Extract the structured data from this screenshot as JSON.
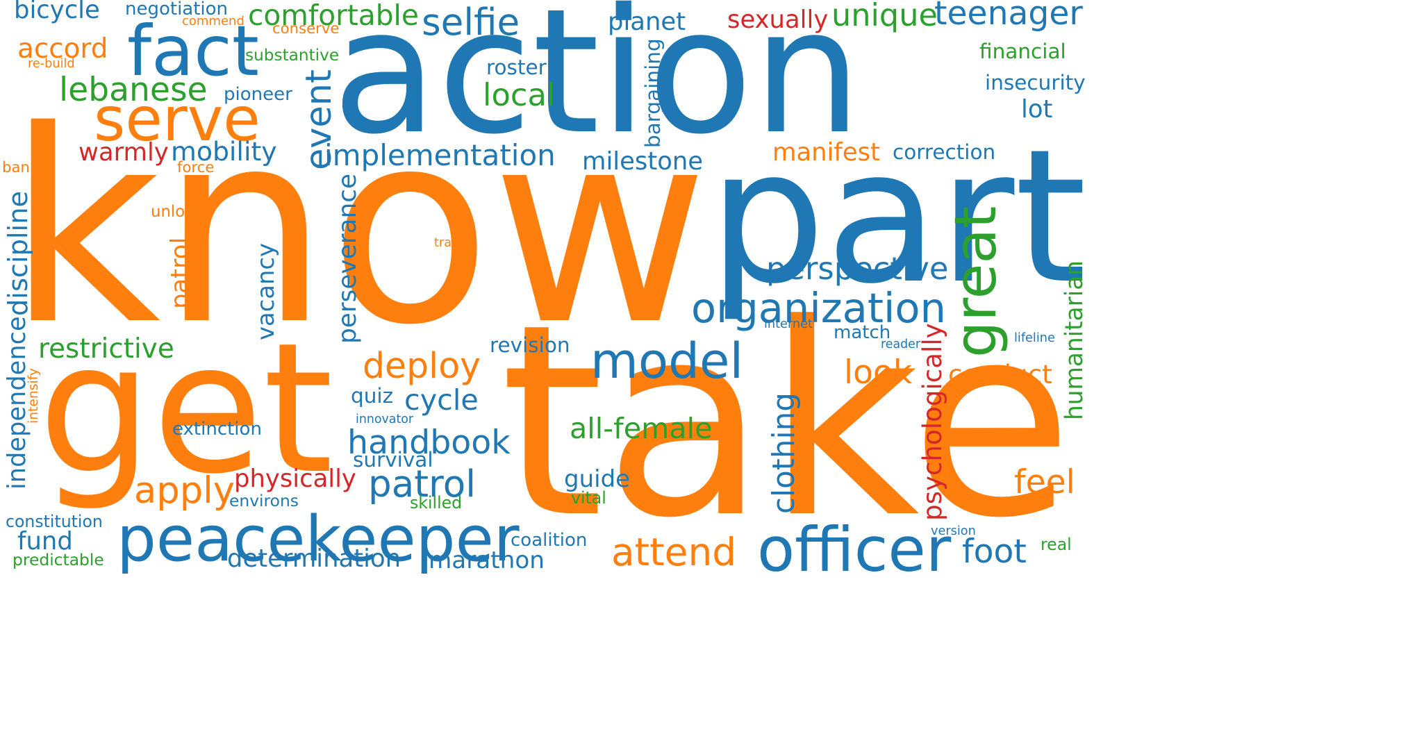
{
  "colors": {
    "blue": "#1f77b4",
    "orange": "#ff7f0e",
    "green": "#2ca02c",
    "red": "#d62728"
  },
  "words": [
    {
      "text": "know",
      "color": "orange"
    },
    {
      "text": "action",
      "color": "blue"
    },
    {
      "text": "take",
      "color": "orange"
    },
    {
      "text": "get",
      "color": "orange"
    },
    {
      "text": "part",
      "color": "blue"
    },
    {
      "text": "fact",
      "color": "blue"
    },
    {
      "text": "serve",
      "color": "orange"
    },
    {
      "text": "peacekeeper",
      "color": "blue"
    },
    {
      "text": "model",
      "color": "blue"
    },
    {
      "text": "officer",
      "color": "blue"
    },
    {
      "text": "great",
      "color": "green"
    },
    {
      "text": "organization",
      "color": "blue"
    },
    {
      "text": "handbook",
      "color": "blue"
    },
    {
      "text": "patrol",
      "color": "blue"
    },
    {
      "text": "attend",
      "color": "orange"
    },
    {
      "text": "deploy",
      "color": "orange"
    },
    {
      "text": "apply",
      "color": "orange"
    },
    {
      "text": "event",
      "color": "blue"
    },
    {
      "text": "lebanese",
      "color": "green"
    },
    {
      "text": "selfie",
      "color": "blue"
    },
    {
      "text": "implementation",
      "color": "blue"
    },
    {
      "text": "perspective",
      "color": "blue"
    },
    {
      "text": "teenager",
      "color": "blue"
    },
    {
      "text": "unique",
      "color": "green"
    },
    {
      "text": "comfortable",
      "color": "green"
    },
    {
      "text": "local",
      "color": "green"
    },
    {
      "text": "determination",
      "color": "blue"
    },
    {
      "text": "marathon",
      "color": "blue"
    },
    {
      "text": "foot",
      "color": "blue"
    },
    {
      "text": "feel",
      "color": "orange"
    },
    {
      "text": "look",
      "color": "orange"
    },
    {
      "text": "conduct",
      "color": "orange"
    },
    {
      "text": "accord",
      "color": "orange"
    },
    {
      "text": "mobility",
      "color": "blue"
    },
    {
      "text": "warmly",
      "color": "red"
    },
    {
      "text": "milestone",
      "color": "blue"
    },
    {
      "text": "restrictive",
      "color": "green"
    },
    {
      "text": "cycle",
      "color": "blue"
    },
    {
      "text": "all-female",
      "color": "green"
    },
    {
      "text": "physically",
      "color": "red"
    },
    {
      "text": "clothing",
      "color": "blue"
    },
    {
      "text": "psychologically",
      "color": "red"
    },
    {
      "text": "humanitarian",
      "color": "green"
    },
    {
      "text": "perseverance",
      "color": "blue"
    },
    {
      "text": "vacancy",
      "color": "blue"
    },
    {
      "text": "patrol",
      "color": "orange"
    },
    {
      "text": "discipline",
      "color": "blue"
    },
    {
      "text": "independence",
      "color": "blue"
    },
    {
      "text": "bargaining",
      "color": "blue"
    },
    {
      "text": "bicycle",
      "color": "blue"
    },
    {
      "text": "planet",
      "color": "blue"
    },
    {
      "text": "sexually",
      "color": "red"
    },
    {
      "text": "financial",
      "color": "green"
    },
    {
      "text": "insecurity",
      "color": "blue"
    },
    {
      "text": "lot",
      "color": "blue"
    },
    {
      "text": "manifest",
      "color": "orange"
    },
    {
      "text": "correction",
      "color": "blue"
    },
    {
      "text": "roster",
      "color": "blue"
    },
    {
      "text": "fund",
      "color": "blue"
    },
    {
      "text": "guide",
      "color": "blue"
    },
    {
      "text": "survival",
      "color": "blue"
    },
    {
      "text": "revision",
      "color": "blue"
    },
    {
      "text": "quiz",
      "color": "blue"
    },
    {
      "text": "extinction",
      "color": "blue"
    },
    {
      "text": "match",
      "color": "blue"
    },
    {
      "text": "coalition",
      "color": "blue"
    },
    {
      "text": "negotiation",
      "color": "blue"
    },
    {
      "text": "substantive",
      "color": "green"
    },
    {
      "text": "pioneer",
      "color": "blue"
    },
    {
      "text": "constitution",
      "color": "blue"
    },
    {
      "text": "environs",
      "color": "blue"
    },
    {
      "text": "vital",
      "color": "green"
    },
    {
      "text": "skilled",
      "color": "green"
    },
    {
      "text": "predictable",
      "color": "green"
    },
    {
      "text": "real",
      "color": "green"
    },
    {
      "text": "commend",
      "color": "orange"
    },
    {
      "text": "conserve",
      "color": "orange"
    },
    {
      "text": "re-build",
      "color": "orange"
    },
    {
      "text": "ban",
      "color": "orange"
    },
    {
      "text": "force",
      "color": "orange"
    },
    {
      "text": "unlock",
      "color": "orange"
    },
    {
      "text": "travel",
      "color": "orange"
    },
    {
      "text": "intensify",
      "color": "orange"
    },
    {
      "text": "internet",
      "color": "blue"
    },
    {
      "text": "reader",
      "color": "blue"
    },
    {
      "text": "lifeline",
      "color": "blue"
    },
    {
      "text": "innovator",
      "color": "blue"
    },
    {
      "text": "version",
      "color": "blue"
    }
  ]
}
